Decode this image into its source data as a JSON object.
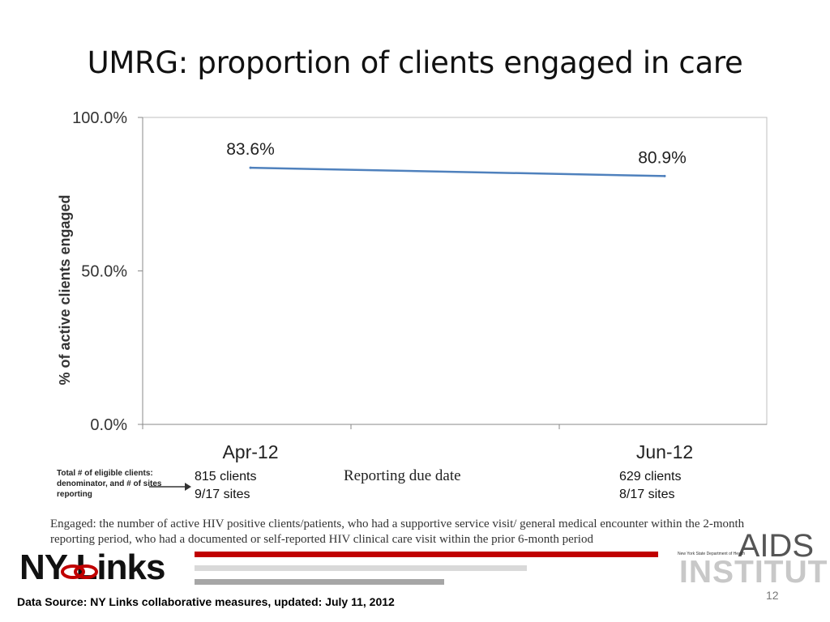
{
  "slide": {
    "title": "UMRG: proportion of clients engaged in care",
    "page_number": "12"
  },
  "chart_data": {
    "type": "line",
    "categories": [
      "Apr-12",
      "Jun-12"
    ],
    "series": [
      {
        "values": [
          83.6,
          80.9
        ]
      }
    ],
    "data_labels": [
      "83.6%",
      "80.9%"
    ],
    "y_ticks": [
      "0.0%",
      "50.0%",
      "100.0%"
    ],
    "ylim": [
      0,
      100
    ],
    "ylabel": "%  of  active clients engaged",
    "xlabel": "Reporting  due date",
    "grid": false,
    "line_color": "#4f81bd"
  },
  "denominator_note": {
    "label": "Total # of eligible clients: denominator, and # of sites reporting",
    "columns": [
      {
        "clients": "815 clients",
        "sites": "9/17 sites"
      },
      {
        "clients": "629 clients",
        "sites": "8/17 sites"
      }
    ]
  },
  "definition": "Engaged:  the number of active  HIV  positive clients/patients, who had a supportive service visit/ general medical encounter within the 2-month reporting period, who had a documented or self-reported HIV  clinical care visit within the prior 6-month period",
  "footer": {
    "logo_text": "NY Links",
    "org_word": "AIDS",
    "org_name": "INSTITUTE",
    "org_dept": "New York State Department of Health",
    "source": "Data Source: NY Links collaborative measures, updated: July 11, 2012",
    "colors": {
      "accent_red": "#c00000",
      "gray_light": "#d9d9d9",
      "gray_mid": "#a6a6a6"
    }
  }
}
